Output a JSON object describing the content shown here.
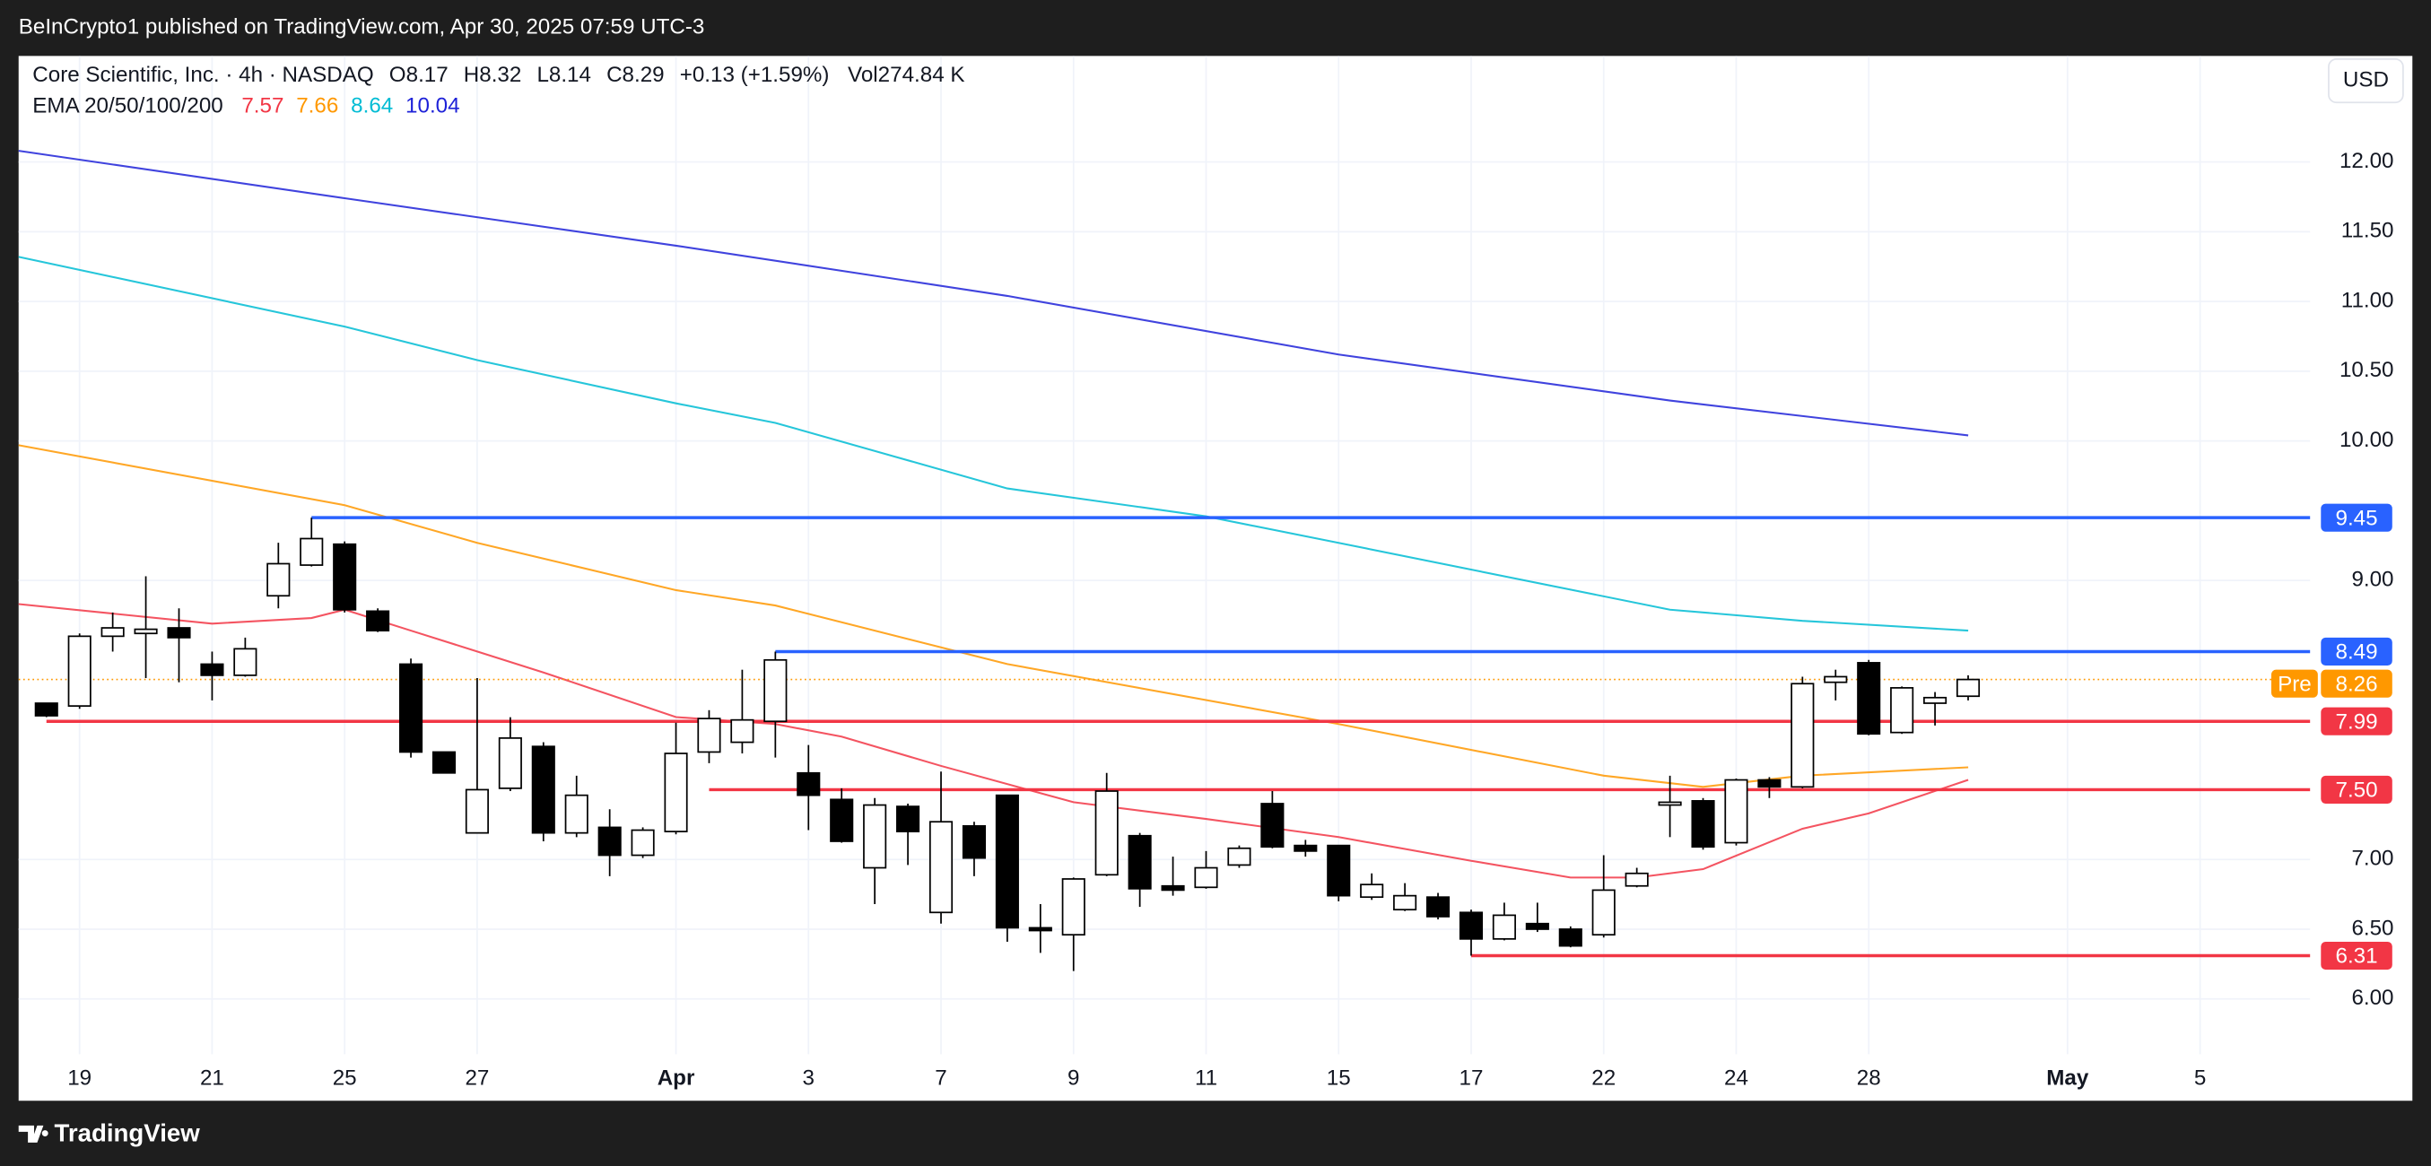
{
  "header": {
    "publisher": "BeInCrypto1 published on TradingView.com, Apr 30, 2025 07:59 UTC-3",
    "currency": "USD",
    "brand": "TradingView"
  },
  "chart_data": {
    "type": "candlestick",
    "title": "Core Scientific, Inc. · 4h · NASDAQ",
    "ohlc_legend": [
      "O8.17",
      "H8.32",
      "L8.14",
      "C8.29",
      "+0.13 (+1.59%)",
      "Vol274.84 K"
    ],
    "ema_legend": "EMA 20/50/100/200",
    "x": [
      0,
      1,
      2,
      3,
      4,
      5,
      6,
      7,
      8,
      9,
      10,
      11,
      12,
      13,
      14,
      15,
      16,
      17,
      18,
      19,
      20,
      21,
      22,
      23,
      24,
      25,
      26,
      27,
      28,
      29,
      30,
      31,
      32,
      33,
      34,
      35,
      36,
      37,
      38,
      39,
      40,
      41,
      42,
      43,
      44,
      45,
      46,
      47,
      48,
      49,
      50,
      51,
      52,
      53,
      54,
      55,
      56,
      57,
      58
    ],
    "open": [
      8.12,
      8.1,
      8.6,
      8.62,
      8.66,
      8.4,
      8.32,
      8.89,
      9.11,
      9.26,
      8.78,
      8.4,
      7.77,
      7.19,
      7.51,
      7.81,
      7.19,
      7.23,
      7.03,
      7.2,
      7.77,
      7.84,
      7.99,
      7.62,
      7.43,
      6.94,
      7.38,
      6.62,
      7.24,
      7.46,
      6.51,
      6.46,
      6.89,
      7.17,
      6.81,
      6.8,
      6.96,
      7.4,
      7.1,
      7.1,
      6.73,
      6.64,
      6.73,
      6.62,
      6.43,
      6.54,
      6.5,
      6.46,
      6.81,
      7.39,
      7.42,
      7.12,
      7.57,
      7.52,
      8.27,
      8.41,
      7.91,
      8.12,
      8.17
    ],
    "high": [
      8.12,
      8.62,
      8.77,
      9.03,
      8.8,
      8.49,
      8.59,
      9.27,
      9.45,
      9.28,
      8.8,
      8.44,
      7.77,
      8.3,
      8.02,
      7.84,
      7.6,
      7.36,
      7.23,
      7.98,
      8.07,
      8.36,
      8.49,
      7.82,
      7.51,
      7.44,
      7.4,
      7.63,
      7.27,
      7.46,
      6.68,
      6.87,
      7.62,
      7.19,
      7.02,
      7.06,
      7.1,
      7.49,
      7.14,
      7.1,
      6.9,
      6.83,
      6.76,
      6.64,
      6.69,
      6.69,
      6.52,
      7.03,
      6.94,
      7.6,
      7.44,
      7.58,
      7.59,
      8.31,
      8.36,
      8.43,
      8.24,
      8.2,
      8.32
    ],
    "low": [
      8.02,
      8.08,
      8.49,
      8.3,
      8.27,
      8.14,
      8.31,
      8.8,
      9.1,
      8.77,
      8.63,
      7.73,
      7.62,
      7.19,
      7.49,
      7.13,
      7.16,
      6.88,
      7.01,
      7.18,
      7.69,
      7.76,
      7.73,
      7.21,
      7.12,
      6.68,
      6.96,
      6.54,
      6.88,
      6.41,
      6.33,
      6.2,
      6.88,
      6.66,
      6.74,
      6.79,
      6.94,
      7.08,
      7.02,
      6.7,
      6.71,
      6.63,
      6.57,
      6.31,
      6.42,
      6.48,
      6.37,
      6.44,
      6.8,
      7.16,
      7.07,
      7.1,
      7.44,
      7.51,
      8.14,
      7.89,
      7.9,
      7.96,
      8.14
    ],
    "close": [
      8.03,
      8.6,
      8.66,
      8.65,
      8.59,
      8.32,
      8.51,
      9.12,
      9.3,
      8.79,
      8.64,
      7.77,
      7.62,
      7.5,
      7.87,
      7.19,
      7.46,
      7.03,
      7.21,
      7.76,
      8.01,
      8.0,
      8.43,
      7.46,
      7.13,
      7.39,
      7.2,
      7.27,
      7.01,
      6.51,
      6.49,
      6.86,
      7.49,
      6.79,
      6.78,
      6.94,
      7.08,
      7.09,
      7.06,
      6.74,
      6.82,
      6.74,
      6.59,
      6.43,
      6.6,
      6.5,
      6.38,
      6.78,
      6.9,
      7.41,
      7.09,
      7.57,
      7.52,
      8.26,
      8.31,
      7.9,
      8.23,
      8.16,
      8.29
    ],
    "up_color": "#ffffff",
    "down_color": "#000000",
    "xlim": [
      -0.84,
      68.32
    ],
    "xticks": [
      {
        "value": 1,
        "label": "19"
      },
      {
        "value": 5,
        "label": "21"
      },
      {
        "value": 9,
        "label": "25"
      },
      {
        "value": 13,
        "label": "27"
      },
      {
        "value": 19,
        "label": "Apr"
      },
      {
        "value": 23,
        "label": "3"
      },
      {
        "value": 27,
        "label": "7"
      },
      {
        "value": 31,
        "label": "9"
      },
      {
        "value": 35,
        "label": "11"
      },
      {
        "value": 39,
        "label": "15"
      },
      {
        "value": 43,
        "label": "17"
      },
      {
        "value": 47,
        "label": "22"
      },
      {
        "value": 51,
        "label": "24"
      },
      {
        "value": 55,
        "label": "28"
      },
      {
        "value": 61,
        "label": "May"
      },
      {
        "value": 65,
        "label": "5"
      }
    ],
    "ylim": [
      5.27,
      12.76
    ],
    "yticks": [
      {
        "value": 6,
        "label": "6.00"
      },
      {
        "value": 6.5,
        "label": "6.50"
      },
      {
        "value": 7,
        "label": "7.00"
      },
      {
        "value": 9,
        "label": "9.00"
      },
      {
        "value": 10,
        "label": "10.00"
      },
      {
        "value": 10.5,
        "label": "10.50"
      },
      {
        "value": 11,
        "label": "11.00"
      },
      {
        "value": 11.5,
        "label": "11.50"
      },
      {
        "value": 12,
        "label": "12.00"
      }
    ],
    "grid": true,
    "lines": [
      {
        "color": "#f23645",
        "legend_value": 7.57,
        "x": [
          -0.84,
          5,
          8,
          9,
          11,
          13,
          15,
          19,
          22,
          24,
          27,
          31,
          35,
          39,
          43,
          46,
          48,
          50,
          53,
          55,
          58
        ],
        "values": [
          8.83,
          8.69,
          8.73,
          8.79,
          8.64,
          8.49,
          8.34,
          8.02,
          7.97,
          7.88,
          7.67,
          7.41,
          7.29,
          7.16,
          6.99,
          6.87,
          6.87,
          6.93,
          7.22,
          7.33,
          7.57
        ]
      },
      {
        "color": "#ff9800",
        "legend_value": 7.66,
        "x": [
          -0.84,
          9,
          13,
          19,
          22,
          29,
          39,
          47,
          50,
          53,
          58
        ],
        "values": [
          9.97,
          9.54,
          9.27,
          8.93,
          8.82,
          8.4,
          7.97,
          7.6,
          7.52,
          7.6,
          7.66
        ]
      },
      {
        "color": "#00bcd4",
        "legend_value": 8.64,
        "x": [
          -0.84,
          9,
          13,
          19,
          22,
          29,
          35,
          39,
          49,
          53,
          58
        ],
        "values": [
          11.32,
          10.82,
          10.58,
          10.27,
          10.13,
          9.66,
          9.46,
          9.27,
          8.79,
          8.71,
          8.64
        ]
      },
      {
        "color": "#1e22d8",
        "legend_value": 10.04,
        "x": [
          -0.84,
          9,
          19,
          29,
          39,
          49,
          58
        ],
        "values": [
          12.08,
          11.74,
          11.4,
          11.04,
          10.62,
          10.29,
          10.04
        ]
      }
    ],
    "levels": [
      {
        "value": 9.45,
        "label": "9.45",
        "color": "#2962ff",
        "from": 8
      },
      {
        "value": 8.49,
        "label": "8.49",
        "color": "#2962ff",
        "from": 22
      },
      {
        "value": 7.99,
        "label": "7.99",
        "color": "#f23645",
        "from": 0
      },
      {
        "value": 7.5,
        "label": "7.50",
        "color": "#f23645",
        "from": 20
      },
      {
        "value": 6.31,
        "label": "6.31",
        "color": "#f23645",
        "from": 43
      }
    ],
    "last_price": {
      "value": 8.29,
      "color": "#ff9800"
    },
    "pre_market": {
      "label": "Pre",
      "value": 8.26,
      "color": "#ff9800"
    }
  }
}
